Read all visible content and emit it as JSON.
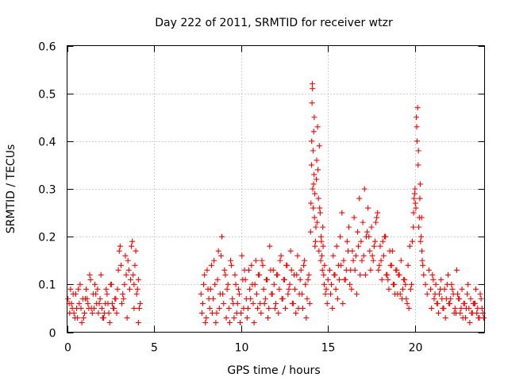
{
  "chart_data": {
    "type": "scatter",
    "title": "Day 222 of 2011, SRMTID for receiver wtzr",
    "xlabel": "GPS time / hours",
    "ylabel": "SRMTID / TECUs",
    "xlim": [
      0,
      24
    ],
    "ylim": [
      0,
      0.6
    ],
    "xticks": [
      0,
      5,
      10,
      15,
      20
    ],
    "xtick_labels": [
      "0",
      "5",
      "10",
      "15",
      "20"
    ],
    "yticks": [
      0,
      0.1,
      0.2,
      0.3,
      0.4,
      0.5,
      0.6
    ],
    "ytick_labels": [
      "0",
      "0.1",
      "0.2",
      "0.3",
      "0.4",
      "0.5",
      "0.6"
    ],
    "grid": true,
    "marker": "+",
    "series": [
      {
        "name": "SRMTID",
        "color": "#ff0000",
        "x": [
          0.05,
          0.12,
          0.2,
          0.3,
          0.4,
          0.5,
          0.6,
          0.7,
          0.8,
          0.9,
          1.0,
          1.1,
          1.2,
          1.3,
          1.4,
          1.5,
          1.6,
          1.7,
          1.8,
          1.9,
          2.0,
          2.1,
          2.2,
          2.3,
          2.4,
          2.5,
          2.6,
          2.7,
          2.8,
          2.9,
          3.0,
          3.05,
          3.1,
          3.2,
          3.3,
          3.4,
          3.5,
          3.6,
          3.7,
          3.75,
          3.8,
          3.85,
          3.9,
          4.0,
          4.1,
          4.2,
          0.15,
          0.35,
          0.55,
          0.75,
          0.95,
          1.15,
          1.35,
          1.55,
          1.75,
          1.95,
          2.15,
          2.35,
          2.55,
          2.75,
          2.95,
          3.15,
          3.35,
          3.55,
          3.65,
          3.95,
          4.05,
          4.15,
          0.25,
          0.45,
          0.65,
          0.85,
          1.05,
          1.25,
          1.45,
          1.65,
          1.85,
          2.05,
          2.25,
          2.45,
          2.65,
          2.85,
          3.25,
          3.45,
          3.85,
          4.1,
          7.7,
          7.8,
          7.9,
          8.0,
          8.1,
          8.2,
          8.3,
          8.4,
          8.5,
          8.6,
          8.7,
          8.8,
          8.9,
          9.0,
          9.1,
          9.2,
          9.3,
          9.4,
          9.5,
          9.6,
          9.7,
          9.8,
          9.9,
          10.0,
          10.1,
          10.2,
          10.3,
          10.4,
          10.5,
          10.6,
          10.7,
          10.8,
          10.9,
          11.0,
          11.1,
          11.2,
          11.3,
          11.4,
          11.5,
          11.6,
          11.7,
          11.8,
          11.9,
          12.0,
          12.1,
          12.2,
          12.3,
          12.4,
          12.5,
          12.6,
          12.7,
          12.8,
          12.9,
          13.0,
          13.1,
          13.2,
          13.3,
          13.4,
          13.5,
          13.6,
          13.7,
          13.8,
          13.9,
          7.75,
          7.95,
          8.15,
          8.35,
          8.55,
          8.75,
          8.95,
          9.15,
          9.35,
          9.55,
          9.75,
          9.95,
          10.15,
          10.35,
          10.55,
          10.75,
          10.95,
          11.15,
          11.35,
          11.55,
          11.75,
          11.95,
          12.15,
          12.35,
          12.55,
          12.75,
          12.95,
          13.15,
          13.35,
          13.55,
          13.75,
          13.95,
          7.85,
          8.05,
          8.25,
          8.45,
          8.65,
          8.85,
          9.05,
          9.25,
          9.45,
          9.65,
          9.85,
          10.05,
          10.25,
          10.45,
          10.65,
          10.85,
          11.05,
          11.25,
          11.45,
          11.65,
          11.85,
          12.05,
          12.25,
          12.45,
          12.65,
          12.85,
          13.05,
          13.25,
          13.45,
          13.65,
          13.85,
          14.0,
          14.05,
          14.08,
          14.1,
          14.12,
          14.15,
          14.18,
          14.2,
          14.22,
          14.25,
          14.3,
          14.35,
          14.4,
          14.45,
          14.5,
          14.55,
          14.6,
          14.65,
          14.7,
          14.75,
          14.8,
          14.9,
          15.0,
          14.02,
          14.06,
          14.11,
          14.14,
          14.17,
          14.21,
          14.24,
          14.28,
          14.33,
          14.38,
          14.42,
          14.48,
          14.52,
          14.58,
          14.62,
          14.68,
          14.72,
          14.78,
          14.85,
          14.95,
          15.1,
          15.2,
          15.3,
          15.4,
          15.5,
          15.6,
          15.7,
          15.8,
          15.9,
          16.0,
          16.1,
          16.2,
          16.3,
          16.4,
          16.5,
          16.6,
          16.7,
          16.8,
          16.9,
          17.0,
          17.1,
          17.2,
          17.3,
          17.4,
          17.5,
          17.6,
          17.7,
          17.8,
          17.9,
          18.0,
          18.1,
          18.2,
          18.3,
          18.4,
          18.5,
          18.6,
          18.7,
          18.8,
          18.9,
          19.0,
          19.1,
          19.2,
          19.3,
          19.4,
          19.5,
          19.6,
          19.7,
          19.8,
          15.15,
          15.35,
          15.55,
          15.75,
          15.95,
          16.15,
          16.35,
          16.55,
          16.75,
          16.95,
          17.15,
          17.35,
          17.55,
          17.75,
          17.95,
          18.15,
          18.35,
          18.55,
          18.75,
          18.95,
          19.15,
          19.35,
          19.55,
          19.75,
          15.25,
          15.45,
          15.65,
          15.85,
          16.05,
          16.25,
          16.45,
          16.65,
          16.85,
          17.05,
          17.25,
          17.45,
          17.65,
          17.85,
          18.05,
          18.25,
          18.45,
          18.65,
          18.85,
          19.05,
          19.25,
          19.45,
          19.65,
          19.85,
          19.9,
          19.95,
          20.0,
          20.05,
          20.1,
          20.15,
          20.2,
          20.25,
          20.3,
          20.35,
          20.4,
          20.45,
          20.5,
          20.6,
          20.7,
          20.8,
          19.92,
          19.98,
          20.02,
          20.08,
          20.12,
          20.18,
          20.22,
          20.28,
          20.32,
          20.38,
          20.42,
          20.9,
          21.0,
          21.1,
          21.2,
          21.3,
          21.4,
          21.5,
          21.6,
          21.7,
          21.8,
          21.9,
          22.0,
          22.1,
          22.2,
          22.3,
          22.4,
          22.5,
          22.6,
          22.7,
          22.8,
          22.9,
          23.0,
          23.1,
          23.2,
          23.3,
          23.4,
          23.5,
          23.6,
          23.7,
          23.8,
          23.9,
          20.95,
          21.15,
          21.35,
          21.55,
          21.75,
          21.95,
          22.15,
          22.35,
          22.55,
          22.75,
          22.95,
          23.15,
          23.35,
          23.55,
          23.75,
          23.95,
          21.05,
          21.25,
          21.45,
          21.65,
          21.85,
          22.05,
          22.25,
          22.45,
          22.65,
          22.85,
          23.05,
          23.25,
          23.45,
          23.65,
          23.85
        ],
        "y": [
          0.07,
          0.06,
          0.09,
          0.05,
          0.04,
          0.08,
          0.03,
          0.06,
          0.05,
          0.07,
          0.04,
          0.09,
          0.06,
          0.12,
          0.05,
          0.08,
          0.1,
          0.06,
          0.04,
          0.07,
          0.05,
          0.03,
          0.06,
          0.08,
          0.04,
          0.1,
          0.06,
          0.05,
          0.07,
          0.09,
          0.17,
          0.18,
          0.14,
          0.08,
          0.1,
          0.12,
          0.15,
          0.09,
          0.18,
          0.19,
          0.12,
          0.1,
          0.14,
          0.08,
          0.11,
          0.06,
          0.04,
          0.08,
          0.05,
          0.1,
          0.03,
          0.07,
          0.11,
          0.05,
          0.09,
          0.12,
          0.04,
          0.06,
          0.1,
          0.07,
          0.13,
          0.06,
          0.16,
          0.13,
          0.11,
          0.17,
          0.09,
          0.05,
          0.06,
          0.03,
          0.09,
          0.02,
          0.07,
          0.05,
          0.04,
          0.08,
          0.06,
          0.03,
          0.09,
          0.02,
          0.05,
          0.04,
          0.07,
          0.03,
          0.05,
          0.02,
          0.08,
          0.06,
          0.12,
          0.03,
          0.09,
          0.05,
          0.14,
          0.07,
          0.1,
          0.04,
          0.17,
          0.08,
          0.2,
          0.06,
          0.12,
          0.09,
          0.05,
          0.15,
          0.07,
          0.03,
          0.1,
          0.06,
          0.08,
          0.04,
          0.11,
          0.13,
          0.07,
          0.05,
          0.09,
          0.14,
          0.06,
          0.1,
          0.08,
          0.12,
          0.06,
          0.15,
          0.09,
          0.07,
          0.11,
          0.05,
          0.13,
          0.08,
          0.1,
          0.06,
          0.12,
          0.09,
          0.16,
          0.07,
          0.11,
          0.14,
          0.08,
          0.1,
          0.13,
          0.06,
          0.09,
          0.12,
          0.05,
          0.11,
          0.08,
          0.14,
          0.1,
          0.07,
          0.12,
          0.04,
          0.02,
          0.07,
          0.04,
          0.02,
          0.05,
          0.08,
          0.03,
          0.02,
          0.06,
          0.04,
          0.02,
          0.05,
          0.03,
          0.07,
          0.02,
          0.05,
          0.04,
          0.06,
          0.03,
          0.08,
          0.05,
          0.04,
          0.07,
          0.05,
          0.09,
          0.06,
          0.04,
          0.08,
          0.05,
          0.03,
          0.06,
          0.1,
          0.13,
          0.09,
          0.15,
          0.11,
          0.16,
          0.13,
          0.1,
          0.14,
          0.12,
          0.09,
          0.16,
          0.11,
          0.13,
          0.1,
          0.15,
          0.12,
          0.14,
          0.11,
          0.18,
          0.13,
          0.12,
          0.15,
          0.11,
          0.14,
          0.17,
          0.12,
          0.16,
          0.13,
          0.15,
          0.11,
          0.21,
          0.35,
          0.48,
          0.52,
          0.3,
          0.26,
          0.42,
          0.33,
          0.24,
          0.18,
          0.22,
          0.36,
          0.43,
          0.28,
          0.39,
          0.25,
          0.2,
          0.16,
          0.22,
          0.12,
          0.14,
          0.09,
          0.11,
          0.27,
          0.4,
          0.51,
          0.38,
          0.31,
          0.45,
          0.29,
          0.19,
          0.32,
          0.23,
          0.34,
          0.17,
          0.26,
          0.15,
          0.19,
          0.13,
          0.18,
          0.1,
          0.08,
          0.06,
          0.13,
          0.1,
          0.16,
          0.12,
          0.18,
          0.14,
          0.2,
          0.25,
          0.15,
          0.11,
          0.19,
          0.22,
          0.13,
          0.17,
          0.24,
          0.16,
          0.21,
          0.28,
          0.19,
          0.23,
          0.3,
          0.2,
          0.26,
          0.17,
          0.22,
          0.15,
          0.19,
          0.24,
          0.13,
          0.18,
          0.11,
          0.16,
          0.2,
          0.12,
          0.09,
          0.14,
          0.17,
          0.1,
          0.13,
          0.08,
          0.12,
          0.15,
          0.09,
          0.11,
          0.07,
          0.14,
          0.18,
          0.1,
          0.08,
          0.12,
          0.07,
          0.14,
          0.11,
          0.17,
          0.09,
          0.13,
          0.18,
          0.15,
          0.12,
          0.2,
          0.16,
          0.23,
          0.14,
          0.19,
          0.12,
          0.17,
          0.1,
          0.13,
          0.08,
          0.11,
          0.06,
          0.09,
          0.05,
          0.09,
          0.11,
          0.06,
          0.13,
          0.1,
          0.15,
          0.08,
          0.12,
          0.16,
          0.21,
          0.13,
          0.18,
          0.25,
          0.15,
          0.2,
          0.11,
          0.14,
          0.08,
          0.12,
          0.07,
          0.1,
          0.05,
          0.19,
          0.22,
          0.28,
          0.3,
          0.26,
          0.43,
          0.47,
          0.38,
          0.24,
          0.31,
          0.2,
          0.17,
          0.14,
          0.12,
          0.1,
          0.08,
          0.13,
          0.25,
          0.29,
          0.27,
          0.45,
          0.4,
          0.35,
          0.22,
          0.28,
          0.19,
          0.24,
          0.15,
          0.09,
          0.12,
          0.07,
          0.1,
          0.06,
          0.08,
          0.11,
          0.05,
          0.09,
          0.07,
          0.12,
          0.06,
          0.1,
          0.08,
          0.05,
          0.13,
          0.07,
          0.04,
          0.09,
          0.06,
          0.03,
          0.08,
          0.05,
          0.07,
          0.04,
          0.06,
          0.09,
          0.05,
          0.03,
          0.07,
          0.04,
          0.05,
          0.08,
          0.04,
          0.07,
          0.03,
          0.06,
          0.09,
          0.04,
          0.07,
          0.03,
          0.05,
          0.02,
          0.06,
          0.04,
          0.08,
          0.03,
          0.11,
          0.06,
          0.09,
          0.05,
          0.1,
          0.07,
          0.04,
          0.08,
          0.05,
          0.06,
          0.1,
          0.04,
          0.06,
          0.03,
          0.05
        ]
      }
    ]
  }
}
